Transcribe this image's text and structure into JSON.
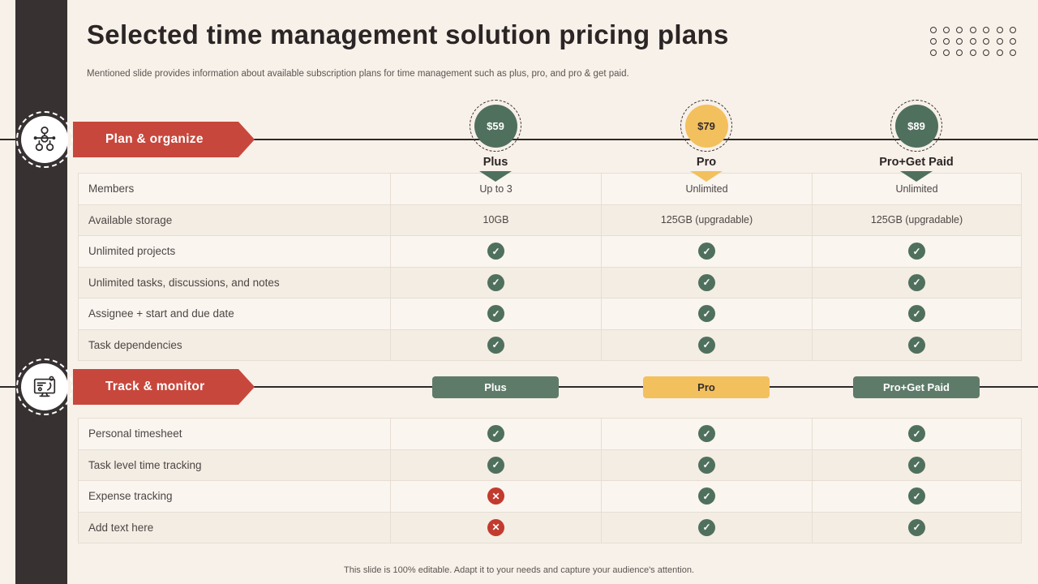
{
  "slide": {
    "title": "Selected time management solution pricing plans",
    "subtitle": "Mentioned slide provides information about available subscription plans for time management such as plus, pro, and pro & get paid.",
    "footer": "This slide is 100% editable. Adapt it to your needs and capture your audience's attention."
  },
  "plans": [
    {
      "name": "Plus",
      "price": "$59",
      "theme": "green"
    },
    {
      "name": "Pro",
      "price": "$79",
      "theme": "yellow"
    },
    {
      "name": "Pro+Get Paid",
      "price": "$89",
      "theme": "green"
    }
  ],
  "sections": [
    {
      "label": "Plan & organize",
      "icon": "org-chart-icon",
      "rows": [
        {
          "feature": "Members",
          "values": [
            "Up to 3",
            "Unlimited",
            "Unlimited"
          ]
        },
        {
          "feature": "Available storage",
          "values": [
            "10GB",
            "125GB (upgradable)",
            "125GB (upgradable)"
          ]
        },
        {
          "feature": "Unlimited projects",
          "values": [
            "check",
            "check",
            "check"
          ]
        },
        {
          "feature": "Unlimited tasks, discussions, and notes",
          "values": [
            "check",
            "check",
            "check"
          ]
        },
        {
          "feature": "Assignee + start and due date",
          "values": [
            "check",
            "check",
            "check"
          ]
        },
        {
          "feature": "Task dependencies",
          "values": [
            "check",
            "check",
            "check"
          ]
        }
      ]
    },
    {
      "label": "Track & monitor",
      "icon": "monitor-tracking-icon",
      "rows": [
        {
          "feature": "Personal timesheet",
          "values": [
            "check",
            "check",
            "check"
          ]
        },
        {
          "feature": "Task level time tracking",
          "values": [
            "check",
            "check",
            "check"
          ]
        },
        {
          "feature": "Expense tracking",
          "values": [
            "cross",
            "check",
            "check"
          ]
        },
        {
          "feature": "Add text here",
          "values": [
            "cross",
            "check",
            "check"
          ]
        }
      ]
    }
  ],
  "marks": {
    "check": "✓",
    "cross": "✕"
  },
  "decor": {
    "dot_rows": 3,
    "dot_cols": 7
  },
  "colors": {
    "bg": "#f8f1e9",
    "sidebar": "#373132",
    "red": "#c8473c",
    "green": "#50705e",
    "green-btn": "#5e7b69",
    "yellow": "#f3c05e",
    "dark": "#2b2526",
    "text": "#4c4645",
    "muted": "#5b5453",
    "border": "#e6ded4",
    "row-a": "#faf5ef",
    "row-b": "#f4ede4",
    "cross": "#c23b2e",
    "line": "#2e292a"
  }
}
